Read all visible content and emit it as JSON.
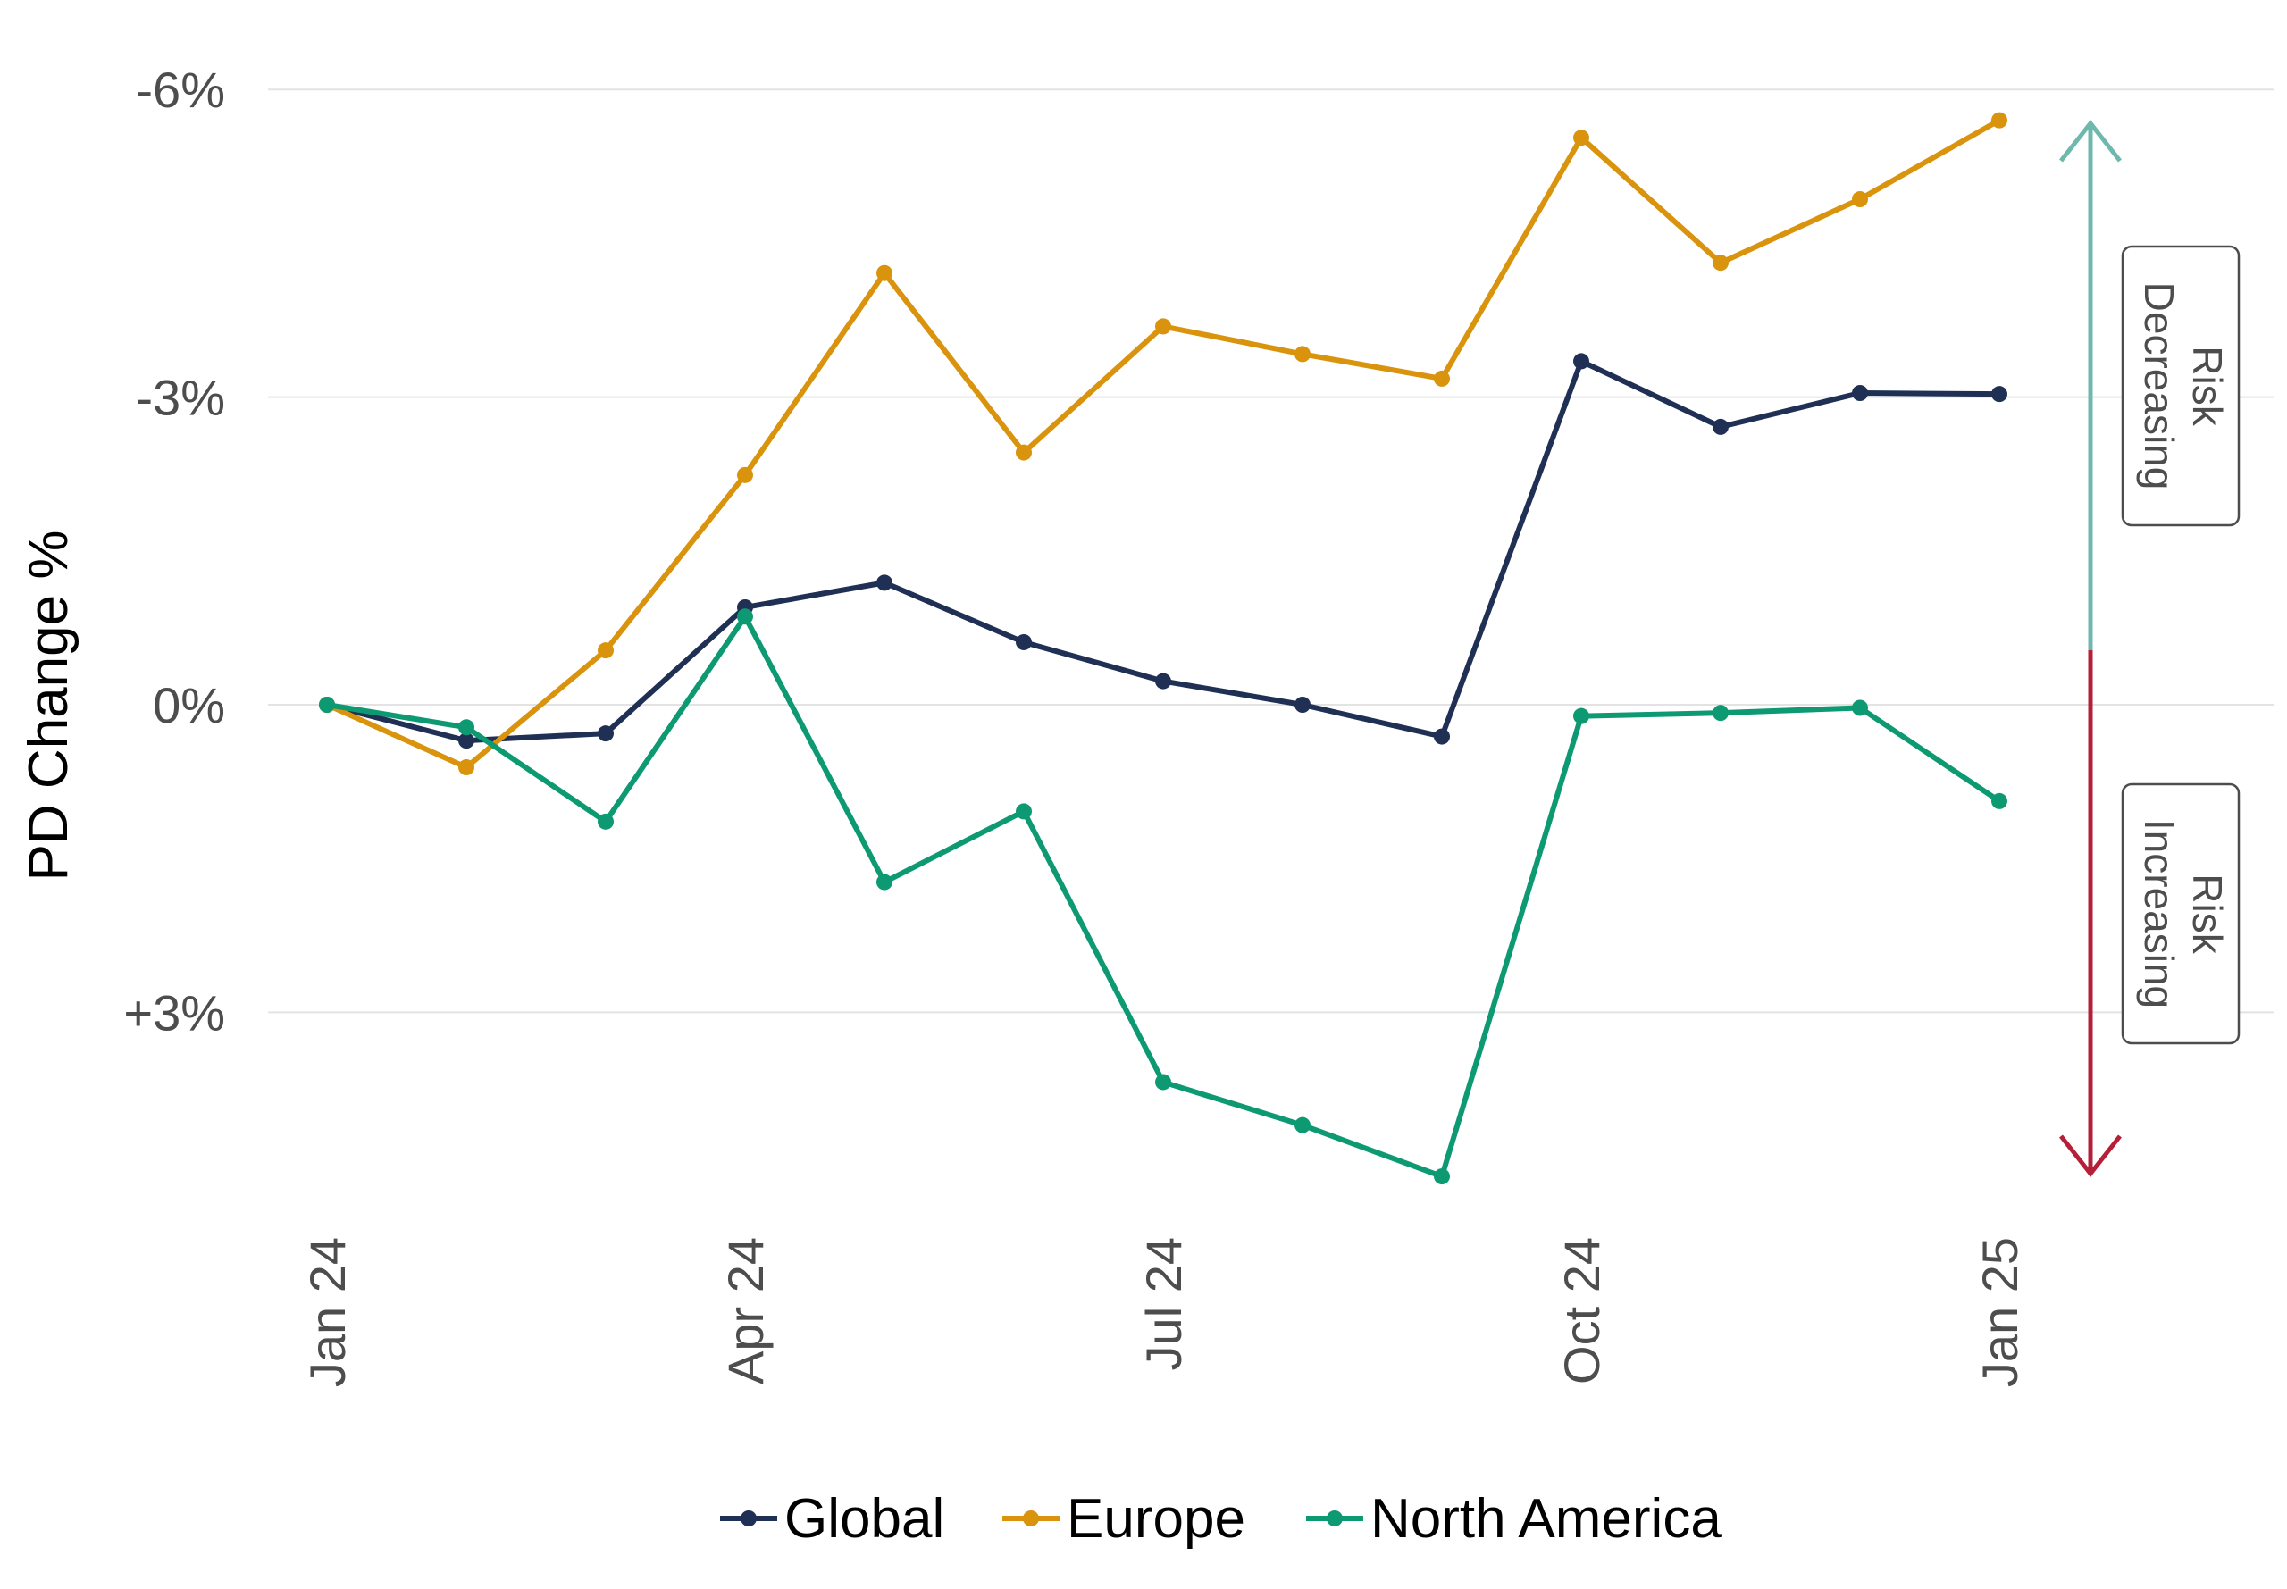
{
  "chart_data": {
    "type": "line",
    "ylabel": "PD Change %",
    "xlabel": "",
    "x": [
      "Jan 24",
      "Feb 24",
      "Mar 24",
      "Apr 24",
      "May 24",
      "Jun 24",
      "Jul 24",
      "Aug 24",
      "Sep 24",
      "Oct 24",
      "Nov 24",
      "Dec 24",
      "Jan 25"
    ],
    "x_tick_labels": [
      "Jan 24",
      "Apr 24",
      "Jul 24",
      "Oct 24",
      "Jan 25"
    ],
    "y_ticks": [
      -6,
      -3,
      0,
      3
    ],
    "y_tick_labels": [
      "-6%",
      "-3%",
      "0%",
      "+3%"
    ],
    "ylim": [
      -6.3,
      5.2
    ],
    "y_inverted": true,
    "grid": true,
    "legend_position": "bottom",
    "series": [
      {
        "name": "Global",
        "color": "#1f3054",
        "values": [
          0.0,
          0.35,
          0.28,
          -0.95,
          -1.19,
          -0.61,
          -0.23,
          0.0,
          0.31,
          -3.35,
          -2.71,
          -3.04,
          -3.03
        ]
      },
      {
        "name": "Europe",
        "color": "#d9930d",
        "values": [
          0.0,
          0.61,
          -0.53,
          -2.24,
          -4.21,
          -2.46,
          -3.69,
          -3.42,
          -3.18,
          -5.53,
          -4.31,
          -4.93,
          -5.7
        ]
      },
      {
        "name": "North America",
        "color": "#0d9a72",
        "values": [
          0.0,
          0.22,
          1.14,
          -0.86,
          1.73,
          1.04,
          3.68,
          4.1,
          4.6,
          0.11,
          0.08,
          0.03,
          0.94
        ]
      }
    ],
    "annotations": {
      "risk_decreasing": {
        "line1": "Risk",
        "line2": "Decreasing",
        "color": "#6fb8ad"
      },
      "risk_increasing": {
        "line1": "Risk",
        "line2": "Increasing",
        "color": "#b61f38"
      }
    }
  }
}
